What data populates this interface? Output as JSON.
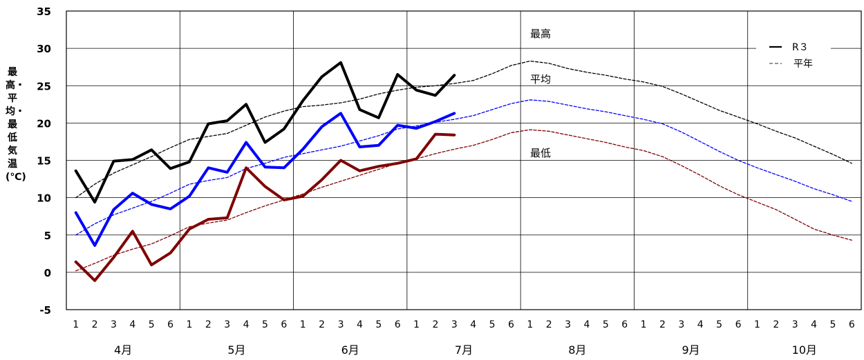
{
  "chart_data": {
    "type": "line",
    "ylabel": "最高・平均・最低気温(℃)",
    "ylim": [
      -5,
      35
    ],
    "yticks": [
      -5,
      0,
      5,
      10,
      15,
      20,
      25,
      30,
      35
    ],
    "x_ticks": [
      "1",
      "2",
      "3",
      "4",
      "5",
      "6",
      "1",
      "2",
      "3",
      "4",
      "5",
      "6",
      "1",
      "2",
      "3",
      "4",
      "5",
      "6",
      "1",
      "2",
      "3",
      "4",
      "5",
      "6",
      "1",
      "2",
      "3",
      "4",
      "5",
      "6",
      "1",
      "2",
      "3",
      "4",
      "5",
      "6",
      "1",
      "2",
      "3",
      "4",
      "5",
      "6"
    ],
    "months": [
      "4月",
      "5月",
      "6月",
      "7月",
      "8月",
      "9月",
      "10月"
    ],
    "grid": true,
    "legend": {
      "position": "top-right",
      "entries": [
        {
          "label": "R３",
          "style": "solid"
        },
        {
          "label": "平年",
          "style": "dashed"
        }
      ]
    },
    "annotations": [
      "最高",
      "平均",
      "最低"
    ],
    "series": [
      {
        "name": "最高",
        "group": "R３",
        "color": "#000000",
        "values": [
          13.6,
          9.4,
          14.9,
          15.1,
          16.4,
          13.9,
          14.8,
          19.9,
          20.3,
          22.5,
          17.4,
          19.2,
          23.0,
          26.2,
          28.1,
          21.8,
          20.7,
          26.5,
          24.4,
          23.7,
          26.4
        ]
      },
      {
        "name": "平均",
        "group": "R３",
        "color": "#0000ff",
        "values": [
          8.0,
          3.6,
          8.4,
          10.6,
          9.1,
          8.5,
          10.2,
          14.0,
          13.4,
          17.4,
          14.1,
          14.0,
          16.5,
          19.5,
          21.3,
          16.8,
          17.0,
          19.7,
          19.3,
          20.2,
          21.3
        ]
      },
      {
        "name": "最低",
        "group": "R３",
        "color": "#800000",
        "values": [
          1.4,
          -1.1,
          2.0,
          5.5,
          1.0,
          2.6,
          5.8,
          7.1,
          7.3,
          14.0,
          11.5,
          9.7,
          10.2,
          12.4,
          15.0,
          13.6,
          14.2,
          14.6,
          15.2,
          18.5,
          18.4
        ]
      },
      {
        "name": "最高",
        "group": "平年",
        "color": "#000000",
        "values": [
          10.0,
          11.8,
          13.3,
          14.4,
          15.5,
          16.7,
          17.8,
          18.2,
          18.6,
          19.7,
          20.8,
          21.6,
          22.2,
          22.4,
          22.7,
          23.2,
          23.9,
          24.4,
          24.8,
          25.0,
          25.3,
          25.7,
          26.6,
          27.7,
          28.3,
          28.0,
          27.3,
          26.8,
          26.4,
          25.9,
          25.5,
          24.9,
          23.9,
          22.8,
          21.7,
          20.8,
          19.9,
          18.9,
          18.0,
          16.9,
          15.8,
          14.6
        ]
      },
      {
        "name": "平均",
        "group": "平年",
        "color": "#0000ff",
        "values": [
          5.0,
          6.5,
          7.7,
          8.6,
          9.5,
          10.6,
          11.8,
          12.3,
          12.7,
          13.9,
          14.6,
          15.4,
          15.9,
          16.4,
          16.9,
          17.6,
          18.3,
          19.2,
          19.6,
          20.1,
          20.5,
          21.0,
          21.8,
          22.6,
          23.1,
          22.9,
          22.4,
          21.9,
          21.5,
          21.0,
          20.5,
          19.9,
          18.8,
          17.5,
          16.2,
          15.0,
          14.0,
          13.1,
          12.2,
          11.2,
          10.4,
          9.5
        ]
      },
      {
        "name": "最低",
        "group": "平年",
        "color": "#800000",
        "values": [
          0.2,
          1.2,
          2.3,
          3.1,
          3.8,
          4.9,
          6.1,
          6.6,
          7.0,
          8.0,
          8.9,
          9.7,
          10.5,
          11.4,
          12.2,
          13.0,
          13.8,
          14.6,
          15.2,
          15.9,
          16.5,
          17.0,
          17.8,
          18.7,
          19.1,
          18.9,
          18.4,
          17.9,
          17.4,
          16.8,
          16.3,
          15.5,
          14.3,
          13.0,
          11.6,
          10.4,
          9.4,
          8.4,
          7.1,
          5.8,
          5.0,
          4.3
        ]
      }
    ]
  }
}
